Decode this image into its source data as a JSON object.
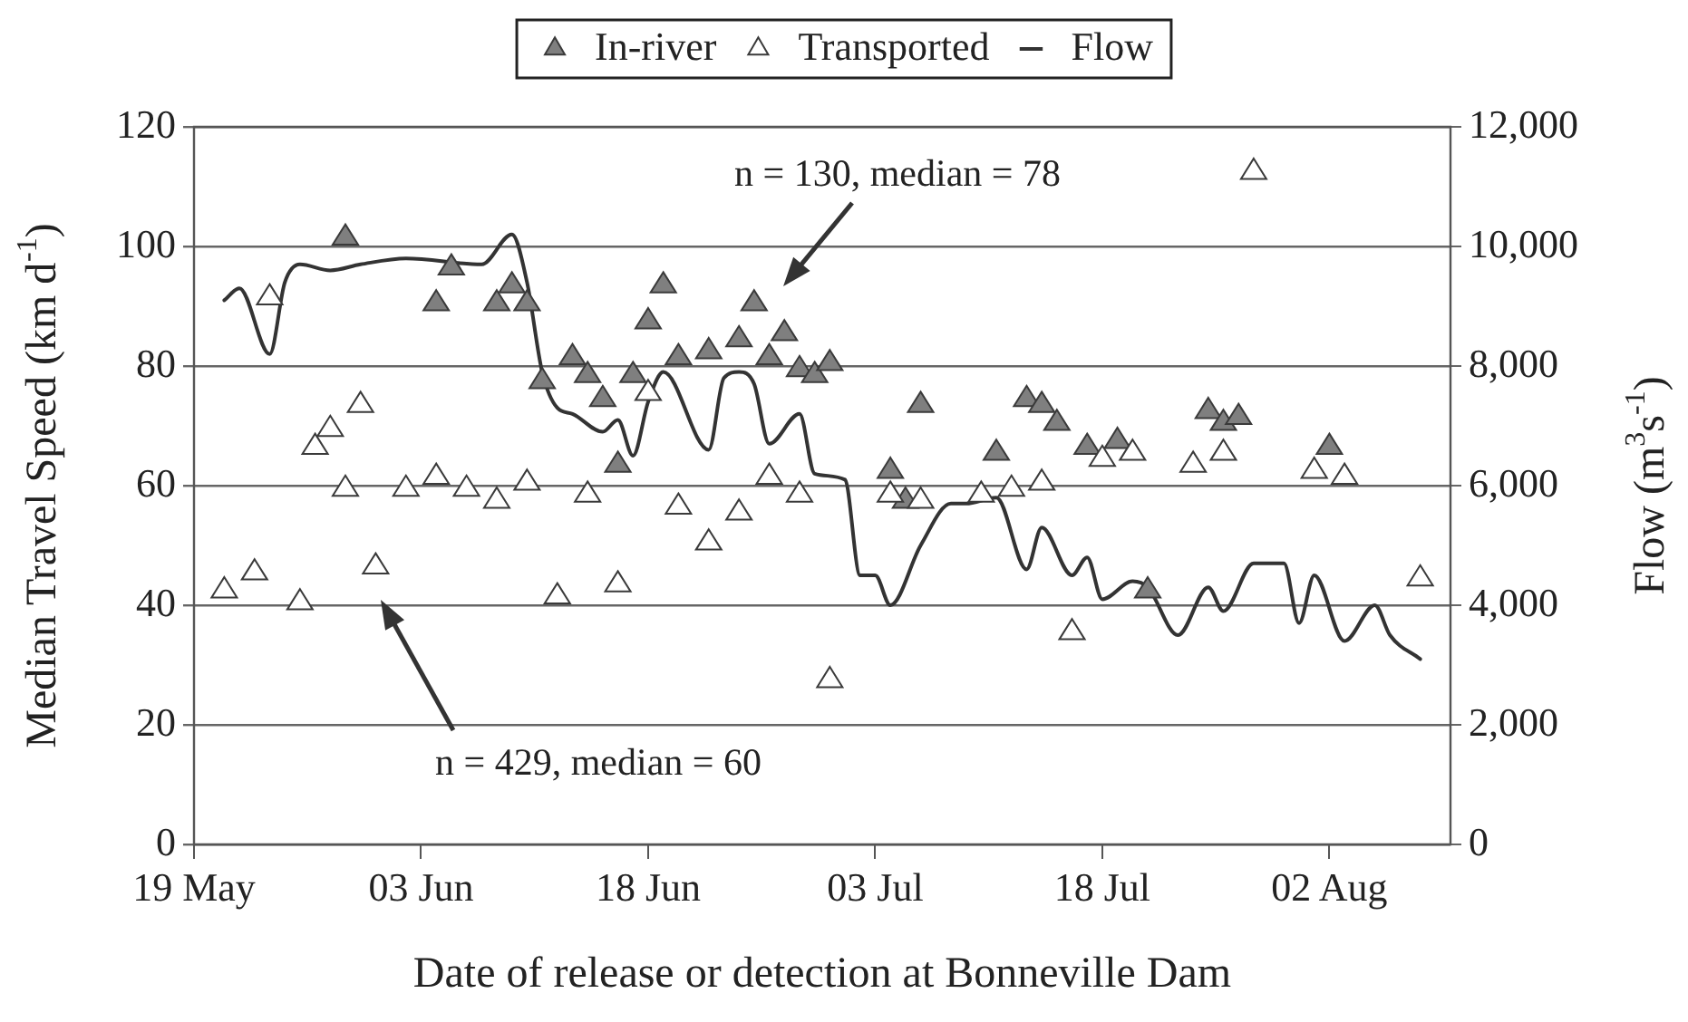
{
  "chart_data": {
    "type": "scatter",
    "xlabel": "Date of release or detection at Bonneville Dam",
    "ylabel": "Median Travel Speed (km d$^{-1}$)",
    "y2label": "Flow (m$^{3}$s$^{-1}$)",
    "xlim": [
      "--05-19",
      "--08-10"
    ],
    "xticks": [
      {
        "value": "--05-19",
        "label": "19 May"
      },
      {
        "value": "--06-03",
        "label": "03 Jun"
      },
      {
        "value": "--06-18",
        "label": "18 Jun"
      },
      {
        "value": "--07-03",
        "label": "03 Jul"
      },
      {
        "value": "--07-18",
        "label": "18 Jul"
      },
      {
        "value": "--08-02",
        "label": "02 Aug"
      }
    ],
    "ylim": [
      0,
      120
    ],
    "yticks": [
      0,
      20,
      40,
      60,
      80,
      100,
      120
    ],
    "y2lim": [
      0,
      12000
    ],
    "y2ticks": [
      0,
      {
        "value": 2000,
        "label": "2,000"
      },
      {
        "value": 4000,
        "label": "4,000"
      },
      {
        "value": 6000,
        "label": "6,000"
      },
      {
        "value": 8000,
        "label": "8,000"
      },
      {
        "value": 10000,
        "label": "10,000"
      },
      {
        "value": 12000,
        "label": "12,000"
      }
    ],
    "grid": "y",
    "legend": "top",
    "annotations": [
      "n = 130, median = 78",
      "n = 429, median = 60"
    ],
    "series": [
      {
        "name": "In-river",
        "marker": "triangle",
        "color": "#7f7f7f",
        "x": [
          "--05-29",
          "--06-04",
          "--06-05",
          "--06-08",
          "--06-09",
          "--06-10",
          "--06-11",
          "--06-13",
          "--06-14",
          "--06-15",
          "--06-16",
          "--06-17",
          "--06-18",
          "--06-19",
          "--06-20",
          "--06-22",
          "--06-24",
          "--06-25",
          "--06-26",
          "--06-27",
          "--06-28",
          "--06-29",
          "--06-30",
          "--07-04",
          "--07-05",
          "--07-06",
          "--07-11",
          "--07-13",
          "--07-14",
          "--07-15",
          "--07-17",
          "--07-19",
          "--07-21",
          "--07-25",
          "--07-26",
          "--07-27",
          "--08-02"
        ],
        "values": [
          102,
          91,
          97,
          91,
          94,
          91,
          78,
          82,
          79,
          75,
          64,
          79,
          88,
          94,
          82,
          83,
          85,
          91,
          82,
          86,
          80,
          79,
          81,
          63,
          58,
          74,
          66,
          75,
          74,
          71,
          67,
          68,
          43,
          73,
          71,
          72,
          67
        ]
      },
      {
        "name": "Transported",
        "marker": "triangle",
        "color": "#ffffff",
        "x": [
          "--05-21",
          "--05-23",
          "--05-24",
          "--05-26",
          "--05-27",
          "--05-28",
          "--05-29",
          "--05-30",
          "--05-31",
          "--06-02",
          "--06-04",
          "--06-06",
          "--06-08",
          "--06-10",
          "--06-12",
          "--06-14",
          "--06-16",
          "--06-18",
          "--06-20",
          "--06-22",
          "--06-24",
          "--06-26",
          "--06-28",
          "--06-30",
          "--07-04",
          "--07-06",
          "--07-10",
          "--07-12",
          "--07-14",
          "--07-16",
          "--07-18",
          "--07-20",
          "--07-24",
          "--07-26",
          "--07-28",
          "--08-01",
          "--08-03",
          "--08-08"
        ],
        "values": [
          43,
          46,
          92,
          41,
          67,
          70,
          60,
          74,
          47,
          60,
          62,
          60,
          58,
          61,
          42,
          59,
          44,
          76,
          57,
          51,
          56,
          62,
          59,
          28,
          59,
          58,
          59,
          60,
          61,
          36,
          65,
          66,
          64,
          66,
          113,
          63,
          62,
          45
        ]
      },
      {
        "name": "Flow",
        "type": "line",
        "axis": "y2",
        "marker": "none",
        "line_style": "solid",
        "color": "#333333",
        "x": [
          "--05-21",
          "--05-22",
          "--05-24",
          "--05-25",
          "--05-26",
          "--05-28",
          "--05-30",
          "--06-02",
          "--06-07",
          "--06-09",
          "--06-10",
          "--06-11",
          "--06-12",
          "--06-13",
          "--06-15",
          "--06-16",
          "--06-17",
          "--06-18",
          "--06-19",
          "--06-22",
          "--06-23",
          "--06-24",
          "--06-25",
          "--06-26",
          "--06-28",
          "--06-29",
          "--07-01",
          "--07-02",
          "--07-03",
          "--07-04",
          "--07-06",
          "--07-08",
          "--07-09",
          "--07-11",
          "--07-13",
          "--07-14",
          "--07-16",
          "--07-17",
          "--07-18",
          "--07-20",
          "--07-21",
          "--07-23",
          "--07-25",
          "--07-26",
          "--07-28",
          "--07-30",
          "--07-31",
          "--08-01",
          "--08-03",
          "--08-05",
          "--08-06",
          "--08-08"
        ],
        "values": [
          9100,
          9300,
          8200,
          9400,
          9700,
          9600,
          9700,
          9800,
          9700,
          10200,
          9400,
          7900,
          7300,
          7200,
          6900,
          7100,
          6500,
          7400,
          7900,
          6600,
          7800,
          7900,
          7700,
          6700,
          7200,
          6200,
          6100,
          4500,
          4500,
          4000,
          5000,
          5700,
          5700,
          5800,
          4600,
          5300,
          4500,
          4800,
          4100,
          4400,
          4300,
          3500,
          4300,
          3900,
          4700,
          4700,
          3700,
          4500,
          3400,
          4000,
          3500,
          3100
        ]
      }
    ]
  }
}
